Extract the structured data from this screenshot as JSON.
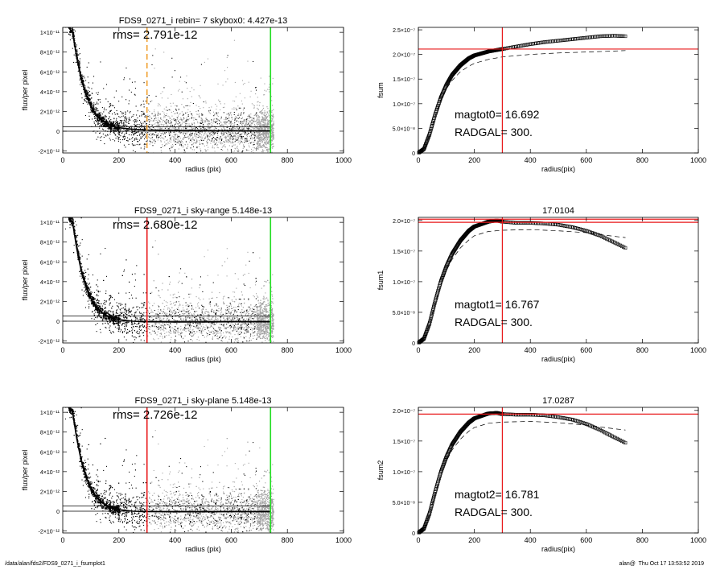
{
  "footer": {
    "left": "/data/alan/fds2/FDS9_0271_i_fsumplot1",
    "right": "alan@  Thu Oct 17 13:53:52 2019"
  },
  "colors": {
    "scatter_dark": "#000000",
    "scatter_light": "#a0a0a0",
    "red": "#e8191b",
    "green": "#22dd22",
    "orange": "#f0a030",
    "axis": "#000000"
  },
  "chart_data": [
    {
      "type": "scatter",
      "title": "FDS9_0271_i rebin= 7    skybox0:  4.427e-13",
      "annotation": "rms= 2.791e-12",
      "xlabel": "radius (pix)",
      "ylabel": "flux/per pixel",
      "xlim": [
        0,
        1000
      ],
      "ylim": [
        -2.2e-12,
        1.05e-11
      ],
      "xticks": [
        0,
        200,
        400,
        600,
        800,
        1000
      ],
      "xtick_labels": [
        "0",
        "200",
        "400",
        "600",
        "800",
        "1000"
      ],
      "yticks": [
        -2e-12,
        0,
        2e-12,
        4e-12,
        6e-12,
        8e-12,
        1e-11
      ],
      "ytick_labels": [
        "-2×10⁻¹²",
        "0",
        "2×10⁻¹²",
        "4×10⁻¹²",
        "6×10⁻¹²",
        "8×10⁻¹²",
        "1×10⁻¹¹"
      ],
      "hlines": [
        0,
        4.43e-13
      ],
      "vlines": [
        {
          "x": 300,
          "color": "orange",
          "style": "dashed"
        },
        {
          "x": 740,
          "color": "green",
          "style": "solid"
        }
      ],
      "profile": {
        "x": [
          20,
          35,
          50,
          65,
          80,
          100,
          120,
          140,
          160,
          180,
          200,
          250,
          300,
          400,
          500,
          600,
          700,
          740
        ],
        "y": [
          1.05e-11,
          1e-11,
          7.4e-12,
          5.4e-12,
          3.9e-12,
          2.5e-12,
          1.6e-12,
          1.05e-12,
          7e-13,
          4.8e-13,
          3.5e-13,
          1.9e-13,
          1.2e-13,
          8e-14,
          6e-14,
          5e-14,
          4e-14,
          4e-14
        ]
      }
    },
    {
      "type": "line",
      "title": "",
      "xlabel": "radius(pix)",
      "ylabel": "fsum",
      "xlim": [
        0,
        1000
      ],
      "ylim": [
        0,
        2.55e-07
      ],
      "xticks": [
        0,
        200,
        400,
        600,
        800,
        1000
      ],
      "xtick_labels": [
        "0",
        "200",
        "400",
        "600",
        "800",
        "1000"
      ],
      "yticks": [
        0,
        5e-08,
        1e-07,
        1.5e-07,
        2e-07,
        2.5e-07
      ],
      "ytick_labels": [
        "0",
        "5.0×10⁻⁸",
        "1.0×10⁻⁷",
        "1.5×10⁻⁷",
        "2.0×10⁻⁷",
        "2.5×10⁻⁷"
      ],
      "hline": 2.11e-07,
      "vline": 300,
      "annotation_lines": [
        "magtot0=  16.692",
        "RADGAL=    300."
      ],
      "series": [
        {
          "style": "markers",
          "x": [
            0,
            20,
            40,
            60,
            80,
            100,
            120,
            150,
            180,
            200,
            250,
            300,
            350,
            400,
            450,
            500,
            550,
            600,
            650,
            700,
            740
          ],
          "y": [
            0,
            8e-09,
            3.8e-08,
            7.8e-08,
            1.12e-07,
            1.38e-07,
            1.58e-07,
            1.78e-07,
            1.92e-07,
            1.98e-07,
            2.06e-07,
            2.11e-07,
            2.16e-07,
            2.21e-07,
            2.25e-07,
            2.28e-07,
            2.31e-07,
            2.34e-07,
            2.37e-07,
            2.38e-07,
            2.37e-07
          ]
        },
        {
          "style": "dashed",
          "x": [
            0,
            20,
            40,
            60,
            80,
            100,
            120,
            150,
            180,
            200,
            250,
            300,
            400,
            500,
            600,
            700,
            740
          ],
          "y": [
            0,
            8e-09,
            3.7e-08,
            7.5e-08,
            1.07e-07,
            1.3e-07,
            1.47e-07,
            1.65e-07,
            1.76e-07,
            1.82e-07,
            1.9e-07,
            1.95e-07,
            2e-07,
            2.03e-07,
            2.05e-07,
            2.07e-07,
            2.08e-07
          ]
        }
      ]
    },
    {
      "type": "scatter",
      "title": "FDS9_0271_i sky-range  5.148e-13",
      "annotation": "rms= 2.680e-12",
      "xlabel": "radius (pix)",
      "ylabel": "flux/per pixel",
      "xlim": [
        0,
        1000
      ],
      "ylim": [
        -2.2e-12,
        1.05e-11
      ],
      "xticks": [
        0,
        200,
        400,
        600,
        800,
        1000
      ],
      "xtick_labels": [
        "0",
        "200",
        "400",
        "600",
        "800",
        "1000"
      ],
      "yticks": [
        -2e-12,
        0,
        2e-12,
        4e-12,
        6e-12,
        8e-12,
        1e-11
      ],
      "ytick_labels": [
        "-2×10⁻¹²",
        "0",
        "2×10⁻¹²",
        "4×10⁻¹²",
        "6×10⁻¹²",
        "8×10⁻¹²",
        "1×10⁻¹¹"
      ],
      "hlines": [
        0,
        5.15e-13
      ],
      "vlines": [
        {
          "x": 300,
          "color": "red",
          "style": "solid"
        },
        {
          "x": 740,
          "color": "green",
          "style": "solid"
        }
      ],
      "profile": {
        "x": [
          20,
          35,
          50,
          65,
          80,
          100,
          120,
          140,
          160,
          180,
          200,
          250,
          300,
          400,
          500,
          600,
          700,
          740
        ],
        "y": [
          1.05e-11,
          1e-11,
          7.3e-12,
          5.2e-12,
          3.7e-12,
          2.3e-12,
          1.4e-12,
          8.5e-13,
          5e-13,
          2.8e-13,
          1.5e-13,
          0,
          -6e-14,
          -8e-14,
          -8e-14,
          -6e-14,
          -6e-14,
          -6e-14
        ]
      }
    },
    {
      "type": "line",
      "title": "17.0104",
      "xlabel": "radius(pix)",
      "ylabel": "fsum1",
      "xlim": [
        0,
        1000
      ],
      "ylim": [
        0,
        2.05e-07
      ],
      "xticks": [
        0,
        200,
        400,
        600,
        800,
        1000
      ],
      "xtick_labels": [
        "0",
        "200",
        "400",
        "600",
        "800",
        "1000"
      ],
      "yticks": [
        0,
        5e-08,
        1e-07,
        1.5e-07,
        2e-07
      ],
      "ytick_labels": [
        "0",
        "5.0×10⁻⁸",
        "1.0×10⁻⁷",
        "1.5×10⁻⁷",
        "2.0×10⁻⁷"
      ],
      "hlines": [
        1.97e-07,
        2.02e-07
      ],
      "vline": 300,
      "annotation_lines": [
        "magtot1=  16.767",
        "RADGAL=    300."
      ],
      "series": [
        {
          "style": "markers",
          "x": [
            0,
            20,
            40,
            60,
            80,
            100,
            120,
            150,
            180,
            200,
            250,
            280,
            300,
            350,
            400,
            450,
            500,
            550,
            600,
            650,
            700,
            740
          ],
          "y": [
            0,
            7e-09,
            3.2e-08,
            6.8e-08,
            1e-07,
            1.25e-07,
            1.45e-07,
            1.67e-07,
            1.83e-07,
            1.9e-07,
            1.98e-07,
            2e-07,
            1.98e-07,
            1.96e-07,
            1.96e-07,
            1.95e-07,
            1.93e-07,
            1.89e-07,
            1.83e-07,
            1.75e-07,
            1.64e-07,
            1.55e-07
          ]
        },
        {
          "style": "dashed",
          "x": [
            0,
            20,
            40,
            60,
            80,
            100,
            120,
            150,
            180,
            200,
            250,
            300,
            400,
            500,
            600,
            700,
            740
          ],
          "y": [
            0,
            7e-09,
            3.1e-08,
            6.5e-08,
            9.5e-08,
            1.18e-07,
            1.36e-07,
            1.55e-07,
            1.68e-07,
            1.75e-07,
            1.82e-07,
            1.84e-07,
            1.85e-07,
            1.83e-07,
            1.8e-07,
            1.74e-07,
            1.72e-07
          ]
        }
      ]
    },
    {
      "type": "scatter",
      "title": "FDS9_0271_i sky-plane  5.148e-13",
      "annotation": "rms= 2.726e-12",
      "xlabel": "radius (pix)",
      "ylabel": "flux/per pixel",
      "xlim": [
        0,
        1000
      ],
      "ylim": [
        -2.2e-12,
        1.05e-11
      ],
      "xticks": [
        0,
        200,
        400,
        600,
        800,
        1000
      ],
      "xtick_labels": [
        "0",
        "200",
        "400",
        "600",
        "800",
        "1000"
      ],
      "yticks": [
        -2e-12,
        0,
        2e-12,
        4e-12,
        6e-12,
        8e-12,
        1e-11
      ],
      "ytick_labels": [
        "-2×10⁻¹²",
        "0",
        "2×10⁻¹²",
        "4×10⁻¹²",
        "6×10⁻¹²",
        "8×10⁻¹²",
        "1×10⁻¹¹"
      ],
      "hlines": [
        0,
        5.15e-13
      ],
      "vlines": [
        {
          "x": 300,
          "color": "red",
          "style": "solid"
        },
        {
          "x": 740,
          "color": "green",
          "style": "solid"
        }
      ],
      "profile": {
        "x": [
          20,
          35,
          50,
          65,
          80,
          100,
          120,
          140,
          160,
          180,
          200,
          250,
          300,
          400,
          500,
          600,
          700,
          740
        ],
        "y": [
          1.05e-11,
          1e-11,
          7.3e-12,
          5.2e-12,
          3.7e-12,
          2.3e-12,
          1.4e-12,
          8.5e-13,
          5e-13,
          2.8e-13,
          1.5e-13,
          0,
          -4e-14,
          -6e-14,
          -6e-14,
          -5e-14,
          -5e-14,
          -5e-14
        ]
      }
    },
    {
      "type": "line",
      "title": "17.0287",
      "xlabel": "radius(pix)",
      "ylabel": "fsum2",
      "xlim": [
        0,
        1000
      ],
      "ylim": [
        0,
        2.05e-07
      ],
      "xticks": [
        0,
        200,
        400,
        600,
        800,
        1000
      ],
      "xtick_labels": [
        "0",
        "200",
        "400",
        "600",
        "800",
        "1000"
      ],
      "yticks": [
        0,
        5e-08,
        1e-07,
        1.5e-07,
        2e-07
      ],
      "ytick_labels": [
        "0",
        "5.0×10⁻⁸",
        "1.0×10⁻⁷",
        "1.5×10⁻⁷",
        "2.0×10⁻⁷"
      ],
      "hlines": [
        1.94e-07
      ],
      "vline": 300,
      "annotation_lines": [
        "magtot2=  16.781",
        "RADGAL=    300."
      ],
      "series": [
        {
          "style": "markers",
          "x": [
            0,
            20,
            40,
            60,
            80,
            100,
            120,
            150,
            180,
            200,
            250,
            280,
            300,
            350,
            400,
            450,
            500,
            550,
            600,
            650,
            700,
            740
          ],
          "y": [
            0,
            7e-09,
            3.2e-08,
            6.7e-08,
            9.9e-08,
            1.24e-07,
            1.44e-07,
            1.65e-07,
            1.8e-07,
            1.87e-07,
            1.95e-07,
            1.96e-07,
            1.94e-07,
            1.93e-07,
            1.93e-07,
            1.92e-07,
            1.89e-07,
            1.85e-07,
            1.78e-07,
            1.68e-07,
            1.56e-07,
            1.47e-07
          ]
        },
        {
          "style": "dashed",
          "x": [
            0,
            20,
            40,
            60,
            80,
            100,
            120,
            150,
            180,
            200,
            250,
            300,
            400,
            500,
            600,
            700,
            740
          ],
          "y": [
            0,
            7e-09,
            3.1e-08,
            6.4e-08,
            9.4e-08,
            1.17e-07,
            1.35e-07,
            1.53e-07,
            1.66e-07,
            1.72e-07,
            1.79e-07,
            1.81e-07,
            1.82e-07,
            1.8e-07,
            1.76e-07,
            1.7e-07,
            1.68e-07
          ]
        }
      ]
    }
  ]
}
